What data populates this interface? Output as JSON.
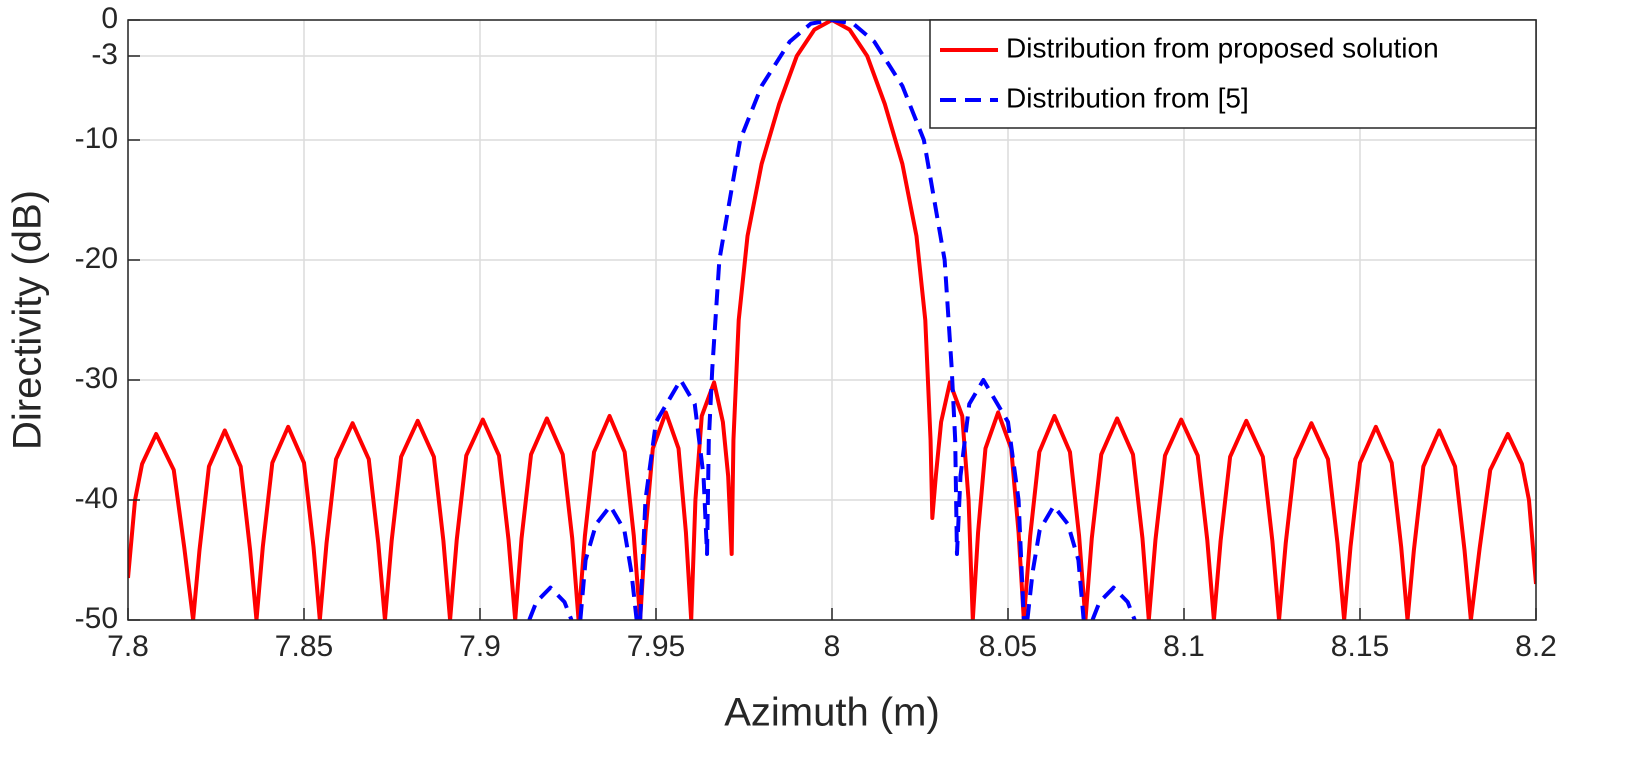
{
  "chart_data": {
    "type": "line",
    "x_label": "Azimuth (m)",
    "y_label": "Directivity (dB)",
    "xlim": [
      7.8,
      8.2
    ],
    "ylim": [
      -50,
      0
    ],
    "xticks": [
      7.8,
      7.85,
      7.9,
      7.95,
      8,
      8.05,
      8.1,
      8.15,
      8.2
    ],
    "yticks": [
      -50,
      -40,
      -30,
      -20,
      -10,
      -3,
      0
    ],
    "grid": true,
    "legend": "upper right",
    "series": [
      {
        "name": "Distribution from proposed solution",
        "color": "#ff0000",
        "dash": "solid",
        "x": [
          7.8,
          7.802,
          7.804,
          7.808,
          7.813,
          7.816,
          7.8185,
          7.8203,
          7.823,
          7.8275,
          7.832,
          7.8347,
          7.8365,
          7.8383,
          7.841,
          7.8455,
          7.85,
          7.8527,
          7.8545,
          7.8564,
          7.8591,
          7.8638,
          7.8684,
          7.8711,
          7.873,
          7.8749,
          7.8776,
          7.8823,
          7.8869,
          7.8896,
          7.8915,
          7.8934,
          7.8961,
          7.9008,
          7.9054,
          7.9081,
          7.91,
          7.9118,
          7.9145,
          7.919,
          7.9235,
          7.9262,
          7.928,
          7.9298,
          7.9324,
          7.9368,
          7.9411,
          7.9437,
          7.9455,
          7.947,
          7.9491,
          7.9528,
          7.9564,
          7.9585,
          7.96,
          7.9612,
          7.963,
          7.9665,
          7.969,
          7.9705,
          7.9715,
          7.972,
          7.9735,
          7.976,
          7.98,
          7.985,
          7.99,
          7.995,
          8,
          8.005,
          8.01,
          8.015,
          8.02,
          8.024,
          8.0265,
          8.028,
          8.0285,
          8.0295,
          8.031,
          8.0335,
          8.037,
          8.0388,
          8.04,
          8.0415,
          8.0436,
          8.0472,
          8.0509,
          8.053,
          8.0545,
          8.0563,
          8.0589,
          8.0632,
          8.0676,
          8.0702,
          8.072,
          8.0738,
          8.0765,
          8.081,
          8.0855,
          8.0882,
          8.09,
          8.0919,
          8.0946,
          8.0992,
          8.1039,
          8.1066,
          8.1085,
          8.1104,
          8.1131,
          8.1177,
          8.1224,
          8.1251,
          8.127,
          8.1289,
          8.1316,
          8.1362,
          8.1409,
          8.1436,
          8.1455,
          8.1473,
          8.15,
          8.1545,
          8.159,
          8.1617,
          8.1635,
          8.1653,
          8.168,
          8.1725,
          8.177,
          8.1797,
          8.1815,
          8.184,
          8.187,
          8.192,
          8.196,
          8.198,
          8.2
        ],
        "values": [
          -46.5,
          -40,
          -37,
          -34.5,
          -37.5,
          -44,
          -50,
          -44.2,
          -37.2,
          -34.2,
          -37.2,
          -44.2,
          -50,
          -43.9,
          -36.9,
          -33.9,
          -36.9,
          -43.9,
          -50,
          -43.6,
          -36.6,
          -33.6,
          -36.6,
          -43.6,
          -50,
          -43.4,
          -36.4,
          -33.4,
          -36.4,
          -43.4,
          -50,
          -43.3,
          -36.3,
          -33.3,
          -36.3,
          -43.3,
          -50,
          -43.2,
          -36.2,
          -33.2,
          -36.2,
          -43.2,
          -50,
          -43,
          -36,
          -33,
          -36,
          -43,
          -50,
          -42.7,
          -35.7,
          -32.7,
          -35.7,
          -42.7,
          -50,
          -40,
          -33,
          -30.2,
          -33.5,
          -38,
          -44.5,
          -35,
          -25,
          -18,
          -12,
          -7,
          -3,
          -0.8,
          0,
          -0.8,
          -3,
          -7,
          -12,
          -18,
          -25,
          -35,
          -41.5,
          -38,
          -33.5,
          -30.2,
          -33,
          -40,
          -50,
          -42.7,
          -35.7,
          -32.7,
          -35.7,
          -42.7,
          -50,
          -43,
          -36,
          -33,
          -36,
          -43,
          -50,
          -43.2,
          -36.2,
          -33.2,
          -36.2,
          -43.2,
          -50,
          -43.3,
          -36.3,
          -33.3,
          -36.3,
          -43.3,
          -50,
          -43.4,
          -36.4,
          -33.4,
          -36.4,
          -43.4,
          -50,
          -43.6,
          -36.6,
          -33.6,
          -36.6,
          -43.6,
          -50,
          -43.9,
          -36.9,
          -33.9,
          -36.9,
          -43.9,
          -50,
          -44.2,
          -37.2,
          -34.2,
          -37.2,
          -44.2,
          -50,
          -44,
          -37.5,
          -34.5,
          -37,
          -40,
          -47
        ]
      },
      {
        "name": "Distribution from [5]",
        "color": "#0000ff",
        "dash": "dashed",
        "x": [
          7.914,
          7.916,
          7.92,
          7.924,
          7.926,
          7.927,
          7.9285,
          7.93,
          7.933,
          7.937,
          7.941,
          7.943,
          7.9445,
          7.945,
          7.9455,
          7.947,
          7.95,
          7.957,
          7.961,
          7.9635,
          7.9645,
          7.965,
          7.966,
          7.968,
          7.9739,
          7.98,
          7.988,
          7.994,
          8,
          8.006,
          8.012,
          8.02,
          8.0261,
          8.032,
          8.034,
          8.035,
          8.0355,
          8.0365,
          8.039,
          8.043,
          8.05,
          8.053,
          8.0545,
          8.055,
          8.0555,
          8.057,
          8.059,
          8.063,
          8.067,
          8.07,
          8.0715,
          8.073,
          8.074,
          8.076,
          8.08,
          8.084,
          8.086
        ],
        "values": [
          -50,
          -48.5,
          -47.3,
          -48.5,
          -50,
          null,
          -50,
          -45,
          -42,
          -40.5,
          -42.5,
          -46,
          -50,
          null,
          -50,
          -40,
          -33.5,
          -30,
          -32,
          -38,
          -44.5,
          -35,
          -29,
          -20,
          -10,
          -5.5,
          -1.8,
          -0.3,
          0,
          -0.3,
          -1.8,
          -5.5,
          -10,
          -20,
          -29,
          -35,
          -44.5,
          -38,
          -32,
          -30,
          -33.5,
          -40,
          -50,
          null,
          -50,
          -46,
          -42.5,
          -40.5,
          -42,
          -45,
          -50,
          null,
          -50,
          -48.5,
          -47.3,
          -48.5,
          -50
        ]
      }
    ]
  }
}
